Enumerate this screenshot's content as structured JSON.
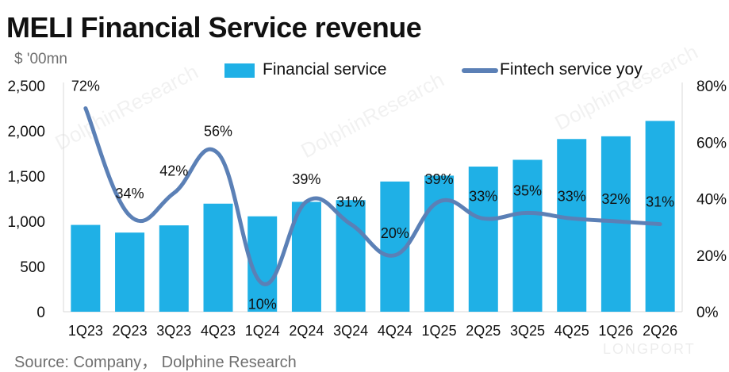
{
  "title": "MELI Financial Service revenue",
  "unit_label": "$ '00mn",
  "source": "Source:  Company， Dolphine Research",
  "watermark": "DolphinResearch",
  "logo": "LONGPORT",
  "colors": {
    "bar": "#1fb0e6",
    "line": "#5b80b6",
    "text": "#111111",
    "axis": "#d9d9d9"
  },
  "chart_data": {
    "type": "bar",
    "categories": [
      "1Q23",
      "2Q23",
      "3Q23",
      "4Q23",
      "1Q24",
      "2Q24",
      "3Q24",
      "4Q24",
      "1Q25",
      "2Q25",
      "3Q25",
      "4Q25",
      "1Q26",
      "2Q26"
    ],
    "series": [
      {
        "name": "Financial service",
        "type": "bar",
        "axis": "left",
        "values": [
          960,
          875,
          955,
          1195,
          1055,
          1215,
          1235,
          1440,
          1505,
          1605,
          1680,
          1910,
          1940,
          2110
        ]
      },
      {
        "name": "Fintech service yoy",
        "type": "line",
        "axis": "right",
        "values": [
          72,
          34,
          42,
          56,
          10,
          39,
          31,
          20,
          39,
          33,
          35,
          33,
          32,
          31
        ],
        "labels": [
          "72%",
          "34%",
          "42%",
          "56%",
          "10%",
          "39%",
          "31%",
          "20%",
          "39%",
          "33%",
          "35%",
          "33%",
          "32%",
          "31%"
        ]
      }
    ],
    "y_left": {
      "ylim": [
        0,
        2500
      ],
      "ticks": [
        "0",
        "500",
        "1,000",
        "1,500",
        "2,000",
        "2,500"
      ],
      "tick_values": [
        0,
        500,
        1000,
        1500,
        2000,
        2500
      ]
    },
    "y_right": {
      "ylim": [
        0,
        80
      ],
      "ticks": [
        "0%",
        "20%",
        "40%",
        "60%",
        "80%"
      ],
      "tick_values": [
        0,
        20,
        40,
        60,
        80
      ]
    },
    "legend": "top",
    "grid": false
  }
}
